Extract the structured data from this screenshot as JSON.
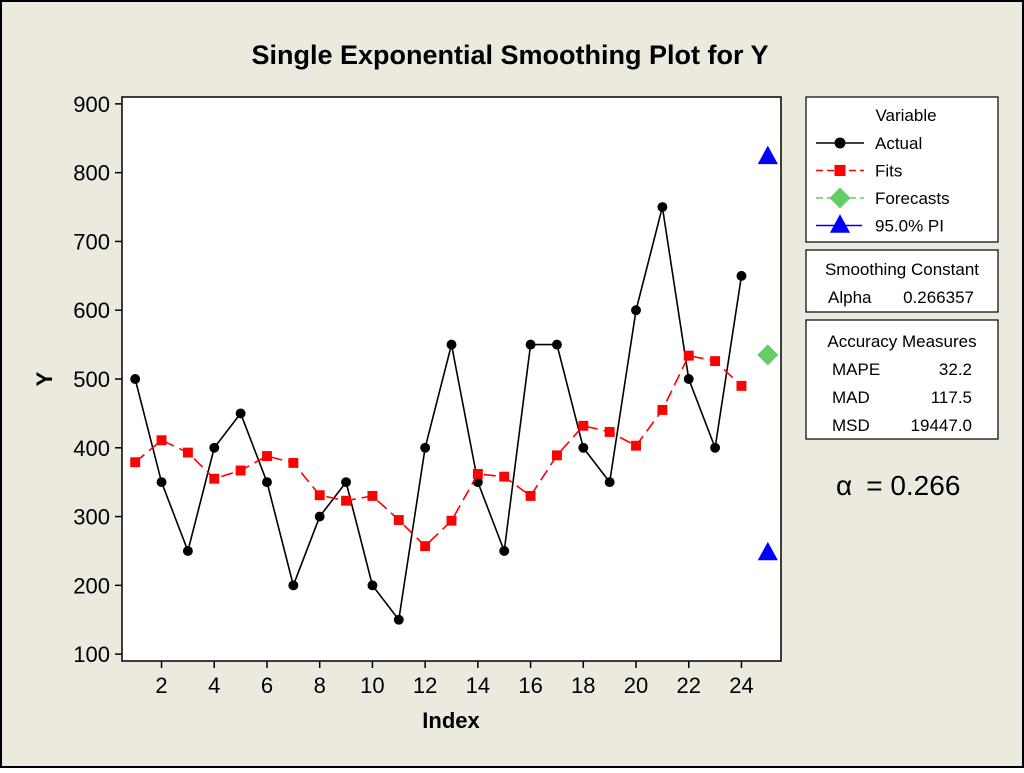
{
  "chart_data": {
    "type": "line",
    "title": "Single Exponential Smoothing Plot for Y",
    "xlabel": "Index",
    "ylabel": "Y",
    "xlim": [
      0.5,
      25.5
    ],
    "ylim": [
      90,
      910
    ],
    "x_ticks": [
      2,
      4,
      6,
      8,
      10,
      12,
      14,
      16,
      18,
      20,
      22,
      24
    ],
    "y_ticks": [
      100,
      200,
      300,
      400,
      500,
      600,
      700,
      800,
      900
    ],
    "grid": false,
    "legend_title": "Variable",
    "series": [
      {
        "name": "Actual",
        "color": "#000000",
        "marker": "circle",
        "line": "solid",
        "x": [
          1,
          2,
          3,
          4,
          5,
          6,
          7,
          8,
          9,
          10,
          11,
          12,
          13,
          14,
          15,
          16,
          17,
          18,
          19,
          20,
          21,
          22,
          23,
          24
        ],
        "values": [
          500,
          350,
          250,
          400,
          450,
          350,
          200,
          300,
          350,
          200,
          150,
          400,
          550,
          350,
          250,
          550,
          550,
          400,
          350,
          600,
          750,
          500,
          400,
          650
        ]
      },
      {
        "name": "Fits",
        "color": "#ff0000",
        "marker": "square",
        "line": "dashed",
        "x": [
          1,
          2,
          3,
          4,
          5,
          6,
          7,
          8,
          9,
          10,
          11,
          12,
          13,
          14,
          15,
          16,
          17,
          18,
          19,
          20,
          21,
          22,
          23,
          24
        ],
        "values": [
          379,
          411,
          393,
          355,
          367,
          388,
          378,
          331,
          323,
          330,
          295,
          257,
          294,
          362,
          358,
          330,
          389,
          432,
          423,
          403,
          455,
          534,
          526,
          490
        ]
      },
      {
        "name": "Forecasts",
        "color": "#66cc66",
        "marker": "diamond",
        "line": "dashed",
        "x": [
          25
        ],
        "values": [
          535
        ]
      },
      {
        "name": "95.0% PI",
        "color": "#0000ff",
        "marker": "triangle",
        "line": "dashed",
        "x": [
          25,
          25
        ],
        "values": [
          823,
          247
        ]
      }
    ],
    "smoothing": {
      "title": "Smoothing Constant",
      "label": "Alpha",
      "value": "0.266357"
    },
    "accuracy": {
      "title": "Accuracy Measures",
      "rows": [
        {
          "label": "MAPE",
          "value": "32.2"
        },
        {
          "label": "MAD",
          "value": "117.5"
        },
        {
          "label": "MSD",
          "value": "19447.0"
        }
      ]
    },
    "annotation": {
      "symbol": "α",
      "text": "= 0.266"
    },
    "background_color": "#ece9df",
    "plot_background": "#ffffff"
  }
}
